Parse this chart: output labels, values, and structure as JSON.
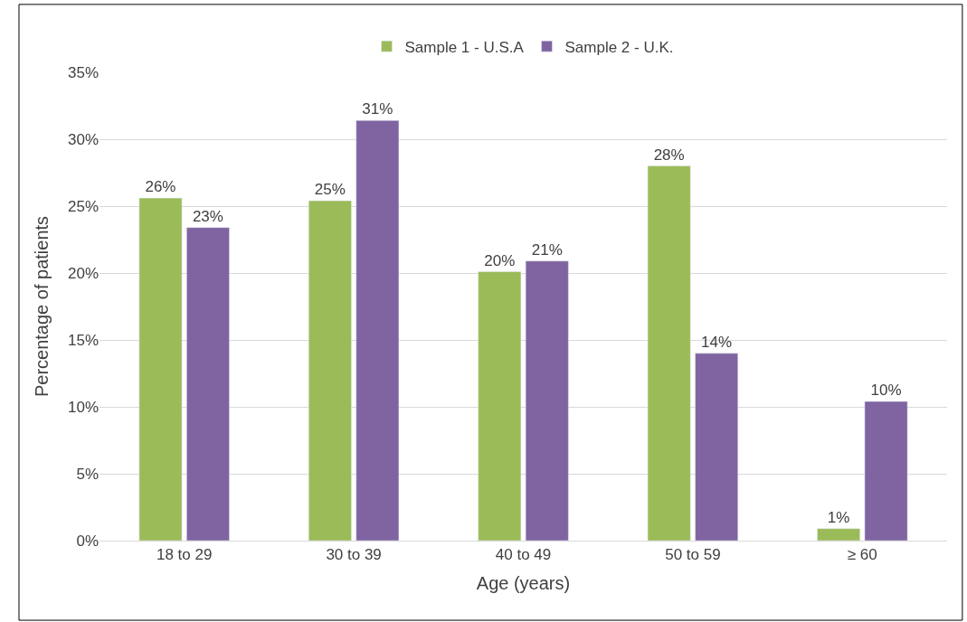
{
  "chart_data": {
    "type": "bar",
    "xlabel": "Age (years)",
    "ylabel": "Percentage of patients",
    "categories": [
      "18 to 29",
      "30 to 39",
      "40 to 49",
      "50 to 59",
      "≥ 60"
    ],
    "series": [
      {
        "name": "Sample 1 - U.S.A",
        "color": "#9bbb59",
        "values": [
          25.6,
          25.4,
          20.1,
          28.0,
          0.9
        ],
        "value_labels": [
          "26%",
          "25%",
          "20%",
          "28%",
          "1%"
        ]
      },
      {
        "name": "Sample 2 - U.K.",
        "color": "#8064a2",
        "values": [
          23.4,
          31.4,
          20.9,
          14.0,
          10.4
        ],
        "value_labels": [
          "23%",
          "31%",
          "21%",
          "14%",
          "10%"
        ]
      }
    ],
    "ylim": [
      0,
      35
    ],
    "yticks": [
      {
        "value": 0,
        "label": "0%"
      },
      {
        "value": 5,
        "label": "5%"
      },
      {
        "value": 10,
        "label": "10%"
      },
      {
        "value": 15,
        "label": "15%"
      },
      {
        "value": 20,
        "label": "20%"
      },
      {
        "value": 25,
        "label": "25%"
      },
      {
        "value": 30,
        "label": "30%"
      },
      {
        "value": 35,
        "label": "35%"
      }
    ],
    "grid": "y",
    "legend": "top"
  }
}
